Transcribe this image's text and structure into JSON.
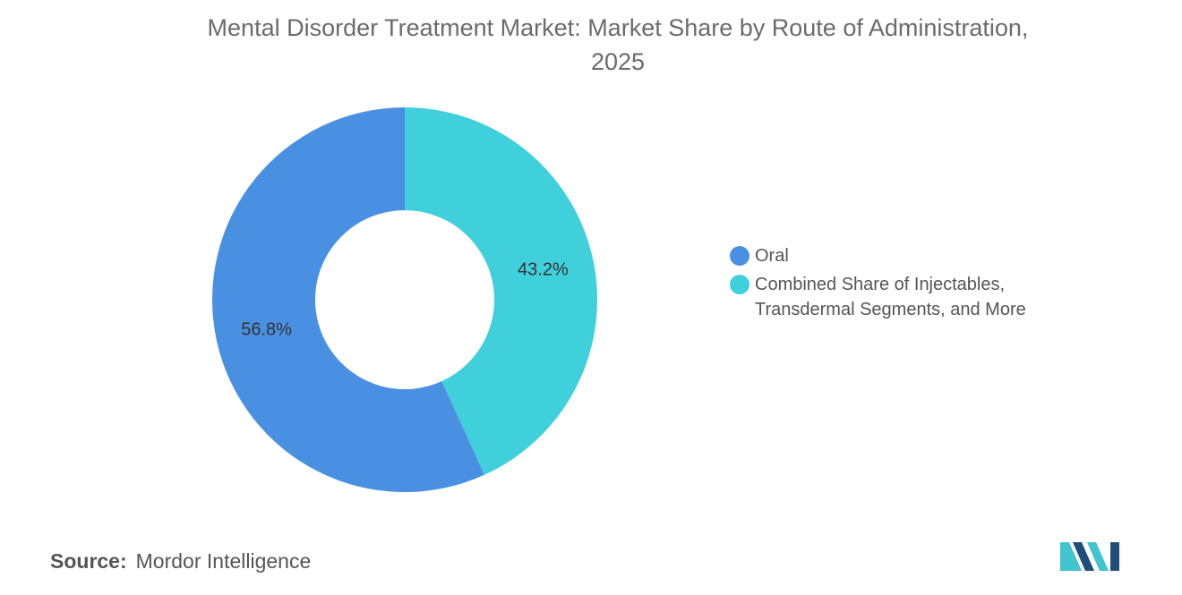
{
  "chart_data": {
    "type": "pie",
    "variant": "donut",
    "title_lines": [
      "Mental Disorder Treatment Market: Market Share by Route of Administration,",
      "2025"
    ],
    "slices": [
      {
        "label": "Oral",
        "value": 56.8,
        "display": "56.8%",
        "color": "#4a90e2"
      },
      {
        "label": "Combined Share of Injectables,\nTransdermal Segments, and More",
        "value": 43.2,
        "display": "43.2%",
        "color": "#40d0db"
      }
    ],
    "legend_position": "right"
  },
  "legend": {
    "items": [
      {
        "label_lines": [
          "Oral"
        ]
      },
      {
        "label_lines": [
          "Combined Share of Injectables,",
          "Transdermal Segments, and More"
        ]
      }
    ]
  },
  "source": {
    "label": "Source:",
    "value": "Mordor Intelligence"
  },
  "logo": {
    "icon": "mordor-intelligence-logo-icon",
    "colors": [
      "#1f4e79",
      "#40c4cf"
    ]
  }
}
